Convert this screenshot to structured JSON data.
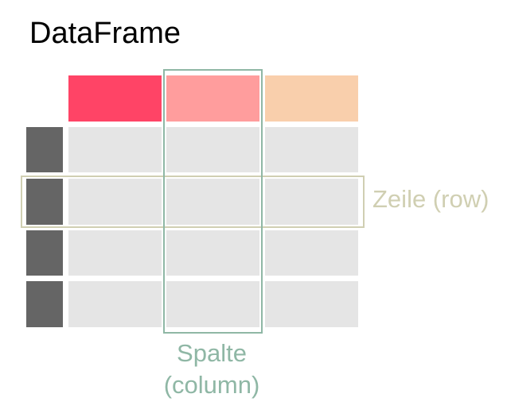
{
  "title": "DataFrame",
  "row_label": "Zeile (row)",
  "column_label_line1": "Spalte",
  "column_label_line2": "(column)",
  "colors": {
    "header_1": "#ff4466",
    "header_2": "#ff9d9d",
    "header_3": "#f9cfac",
    "cell": "#e5e5e5",
    "index": "#656565",
    "row_highlight": "#d0cfb2",
    "column_highlight": "#8fb7a5",
    "title": "#000000"
  },
  "table": {
    "columns": 3,
    "rows": 4
  }
}
